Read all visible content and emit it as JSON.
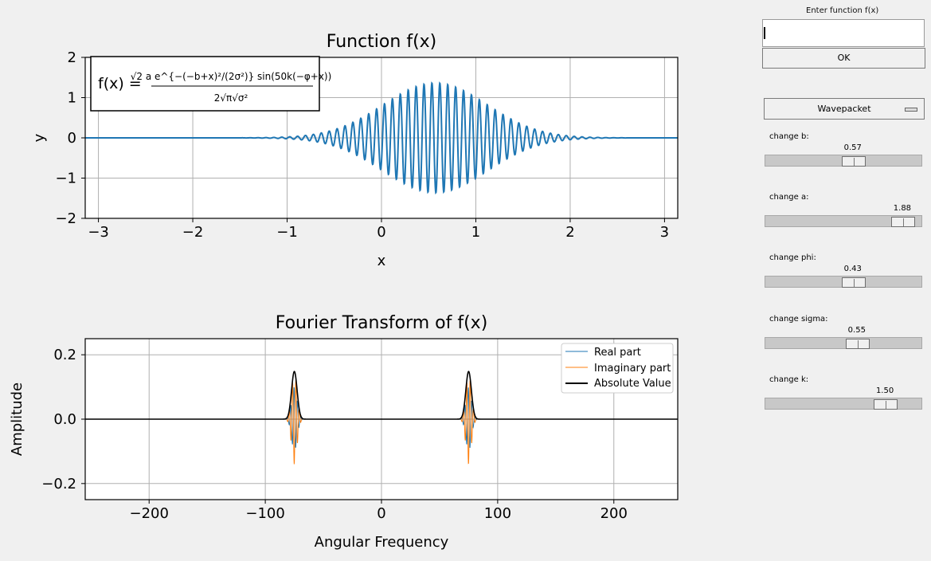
{
  "plot1": {
    "title": "Function f(x)",
    "xlabel": "x",
    "ylabel": "y",
    "formula_prefix": "f(x) =",
    "formula_numerator": "√2 a e^{−(−b+x)²/(2σ²)} sin(50k(−φ+x))",
    "formula_denominator": "2√π√σ²",
    "x_ticks": [
      "−3",
      "−2",
      "−1",
      "0",
      "1",
      "2",
      "3"
    ],
    "y_ticks": [
      "2",
      "1",
      "0",
      "−1",
      "−2"
    ]
  },
  "plot2": {
    "title": "Fourier Transform of f(x)",
    "xlabel": "Angular Frequency",
    "ylabel": "Amplitude",
    "x_ticks": [
      "−200",
      "−100",
      "0",
      "100",
      "200"
    ],
    "y_ticks": [
      "0.2",
      "0.0",
      "−0.2"
    ],
    "legend": [
      "Real part",
      "Imaginary part",
      "Absolute Value"
    ]
  },
  "chart_data": [
    {
      "type": "line",
      "title": "Function f(x)",
      "xlabel": "x",
      "ylabel": "y",
      "xlim": [
        -3.14,
        3.14
      ],
      "ylim": [
        -2,
        2
      ],
      "grid": true,
      "legend": "none",
      "series": [
        {
          "function": "sqrt(2)*a*exp(-(x-b)^2/(2*sigma^2))*sin(50*k*(x-phi))/(2*sqrt(pi)*sqrt(sigma^2))",
          "color": "#1f77b4"
        }
      ],
      "params": {
        "a": 1.88,
        "b": 0.57,
        "phi": 0.43,
        "sigma": 0.55,
        "k": 1.5
      }
    },
    {
      "type": "line",
      "title": "Fourier Transform of f(x)",
      "xlabel": "Angular Frequency",
      "ylabel": "Amplitude",
      "xlim": [
        -255,
        255
      ],
      "ylim": [
        -0.25,
        0.25
      ],
      "grid": true,
      "legend": "top-right",
      "series": [
        {
          "name": "Real part",
          "color": "#1f77b4",
          "peaks_at": [
            -75,
            75
          ],
          "min_value": -0.1
        },
        {
          "name": "Imaginary part",
          "color": "#ff7f0e",
          "peaks_at": [
            -75,
            75
          ],
          "min_value": -0.14
        },
        {
          "name": "Absolute Value",
          "color": "#000000",
          "peaks_at": [
            -75,
            75
          ],
          "peak_value": 0.148
        }
      ]
    }
  ],
  "panel": {
    "entry_label": "Enter function f(x)",
    "entry_value": "",
    "ok_label": "OK",
    "mode_value": "Wavepacket",
    "sliders": [
      {
        "label": "change b:",
        "value": "0.57",
        "fraction": 0.57
      },
      {
        "label": "change a:",
        "value": "1.88",
        "fraction": 0.94
      },
      {
        "label": "change phi:",
        "value": "0.43",
        "fraction": 0.57
      },
      {
        "label": "change sigma:",
        "value": "0.55",
        "fraction": 0.6
      },
      {
        "label": "change k:",
        "value": "1.50",
        "fraction": 0.81
      }
    ]
  },
  "colors": {
    "background": "#f0f0f0",
    "plot_bg": "#ffffff",
    "line_blue": "#1f77b4",
    "line_orange": "#ff7f0e",
    "grid": "#b0b0b0",
    "trough": "#c8c8c8"
  }
}
